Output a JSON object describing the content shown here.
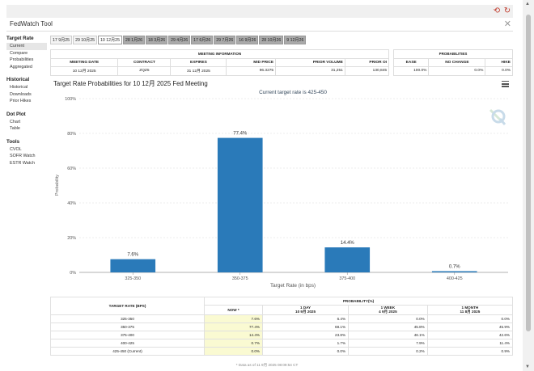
{
  "app": {
    "title": "FedWatch Tool"
  },
  "icons": {
    "top_left": "reset-icon",
    "top_right": "refresh-icon",
    "close": "close-icon",
    "menu": "hamburger-menu-icon",
    "logo": "q-logo-icon"
  },
  "sidebar": {
    "sections": [
      {
        "heading": "Target Rate",
        "items": [
          "Current",
          "Compare",
          "Probabilities",
          "Aggregated"
        ]
      },
      {
        "heading": "Historical",
        "items": [
          "Historical",
          "Downloads",
          "Prior Hikes"
        ]
      },
      {
        "heading": "Dot Plot",
        "items": [
          "Chart",
          "Table"
        ]
      },
      {
        "heading": "Tools",
        "items": [
          "CVOL",
          "SOFR Watch",
          "ESTR Watch"
        ]
      }
    ],
    "active": "Current"
  },
  "tabs": [
    "17 9月25",
    "29 10月25",
    "10 12月25",
    "28 1月26",
    "18 3月26",
    "29 4月26",
    "17 6月26",
    "29 7月26",
    "16 9月26",
    "28 10月26",
    "9 12月26"
  ],
  "active_tab": "10 12月25",
  "meeting_info": {
    "group_title": "MEETING INFORMATION",
    "prob_title": "PROBABILITIES",
    "headers": [
      "MEETING DATE",
      "CONTRACT",
      "EXPIRES",
      "MID PRICE",
      "PRIOR VOLUME",
      "PRIOR OI"
    ],
    "row": [
      "10 12月 2025",
      "ZQZ5",
      "31 12月 2025",
      "96.3275",
      "31,251",
      "130,845"
    ],
    "prob_headers": [
      "EASE",
      "NO CHANGE",
      "HIKE"
    ],
    "prob_row": [
      "100.0%",
      "0.0%",
      "0.0%"
    ]
  },
  "chart_title": "Target Rate Probabilities for 10 12月 2025 Fed Meeting",
  "chart_data": {
    "type": "bar",
    "subtitle": "Current target rate is 425-450",
    "categories": [
      "325-350",
      "350-375",
      "375-400",
      "400-425"
    ],
    "values": [
      7.6,
      77.4,
      14.4,
      0.7
    ],
    "data_labels": [
      "7.6%",
      "77.4%",
      "14.4%",
      "0.7%"
    ],
    "xlabel": "Target Rate (in bps)",
    "ylabel": "Probability",
    "ylim": [
      0,
      100
    ],
    "yticks": [
      "0%",
      "20%",
      "40%",
      "60%",
      "80%",
      "100%"
    ],
    "bar_color": "#2a7ab9",
    "grid": true
  },
  "prob_table": {
    "col_target": "TARGET RATE (BPS)",
    "group": "PROBABILITY(%)",
    "cols": [
      {
        "line1": "NOW *",
        "line2": ""
      },
      {
        "line1": "1 DAY",
        "line2": "10 9月 2025"
      },
      {
        "line1": "1 WEEK",
        "line2": "4 9月 2025"
      },
      {
        "line1": "1 MONTH",
        "line2": "11 8月 2025"
      }
    ],
    "rows": [
      [
        "325-350",
        "7.6%",
        "6.4%",
        "0.0%",
        "0.0%"
      ],
      [
        "350-375",
        "77.4%",
        "68.1%",
        "45.8%",
        "45.9%"
      ],
      [
        "375-400",
        "14.4%",
        "23.8%",
        "46.1%",
        "42.6%"
      ],
      [
        "400-425",
        "0.7%",
        "1.7%",
        "7.9%",
        "11.4%"
      ],
      [
        "425-450 (Current)",
        "0.0%",
        "0.0%",
        "0.2%",
        "0.9%"
      ]
    ]
  },
  "footnote": "* Data as of 11 9月 2025 08:09:54 CT"
}
